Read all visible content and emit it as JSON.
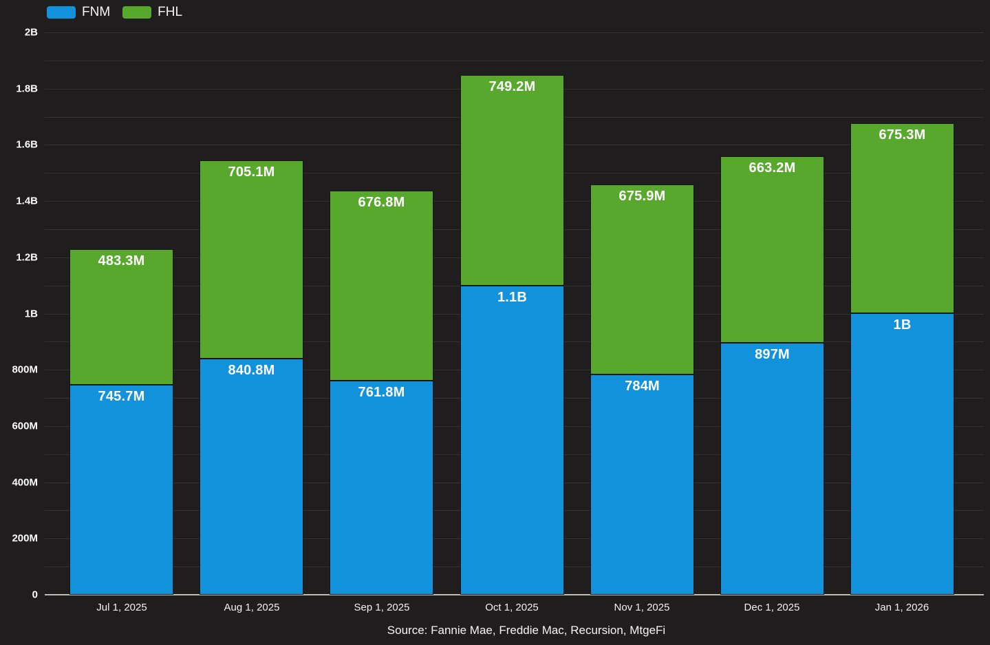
{
  "chart_data": {
    "type": "bar",
    "stacked": true,
    "categories": [
      "Jul 1, 2025",
      "Aug 1, 2025",
      "Sep 1, 2025",
      "Oct 1, 2025",
      "Nov 1, 2025",
      "Dec 1, 2025",
      "Jan 1, 2026"
    ],
    "series": [
      {
        "name": "FNM",
        "color": "#1392dc",
        "values": [
          745.7,
          840.8,
          761.8,
          1100,
          784,
          897,
          1000
        ],
        "labels": [
          "745.7M",
          "840.8M",
          "761.8M",
          "1.1B",
          "784M",
          "897M",
          "1B"
        ]
      },
      {
        "name": "FHL",
        "color": "#58a82d",
        "values": [
          483.3,
          705.1,
          676.8,
          749.2,
          675.9,
          663.2,
          675.3
        ],
        "labels": [
          "483.3M",
          "705.1M",
          "676.8M",
          "749.2M",
          "675.9M",
          "663.2M",
          "675.3M"
        ]
      }
    ],
    "unit_millions": true,
    "ylim": [
      0,
      2000
    ],
    "y_minor_tick_step": 100,
    "y_label_step": 200,
    "y_tick_labels": [
      "0",
      "200M",
      "400M",
      "600M",
      "800M",
      "1B",
      "1.2B",
      "1.4B",
      "1.6B",
      "1.8B",
      "2B"
    ],
    "grid": true,
    "legend_position": "top-left",
    "source": "Source: Fannie Mae, Freddie Mac, Recursion, MtgeFi",
    "theme": {
      "background": "#201d1e",
      "grid_color": "#343233",
      "axis_line_color": "#c2bcb4",
      "text_color": "#ffffff"
    }
  }
}
